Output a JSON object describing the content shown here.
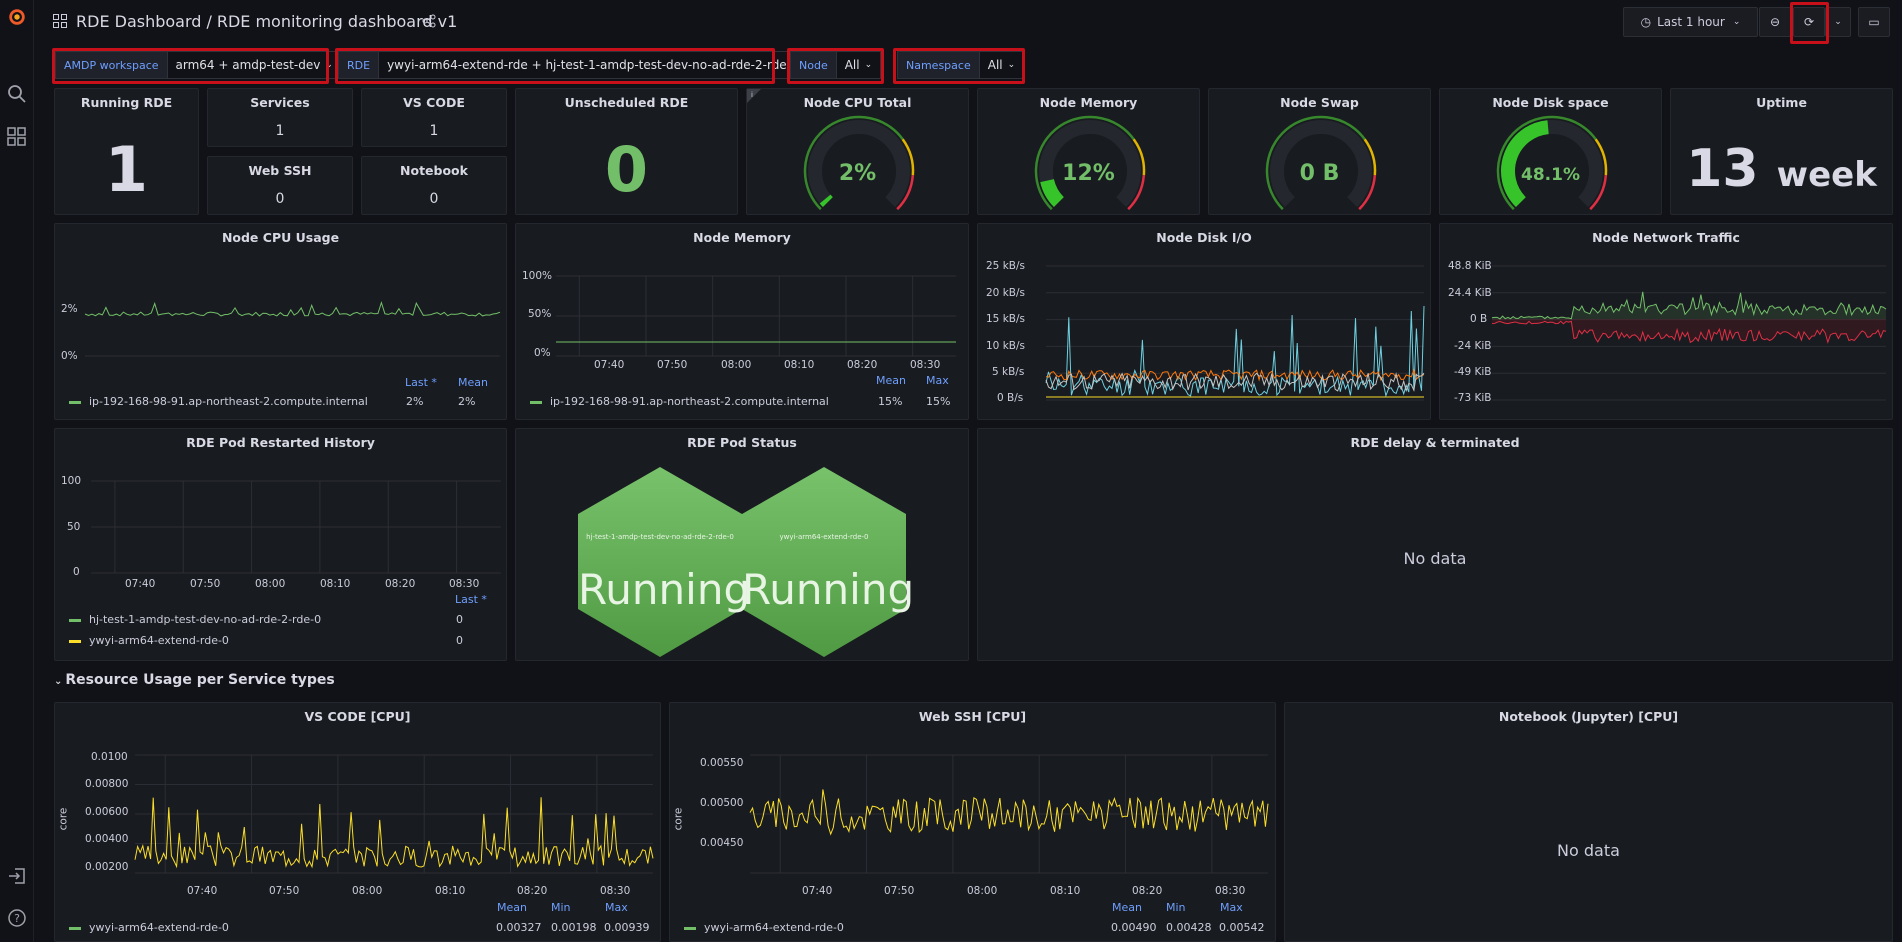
{
  "sidebar": {
    "icons": [
      "grafana-logo-icon",
      "search-icon",
      "apps-icon",
      "signin-icon",
      "help-icon"
    ]
  },
  "header": {
    "app": "RDE Dashboard",
    "sep": "/",
    "dashboard": "RDE monitoring dashboard v1",
    "time_range": "Last 1 hour"
  },
  "variables": [
    {
      "label": "AMDP workspace",
      "value": "arm64 + amdp-test-dev"
    },
    {
      "label": "RDE",
      "value": "ywyi-arm64-extend-rde + hj-test-1-amdp-test-dev-no-ad-rde-2-rde"
    },
    {
      "label": "Node",
      "value": "All"
    },
    {
      "label": "Namespace",
      "value": "All"
    }
  ],
  "stats": {
    "running_rde": {
      "title": "Running RDE",
      "value": "1"
    },
    "services": {
      "title": "Services",
      "value": "1"
    },
    "vscode": {
      "title": "VS CODE",
      "value": "1"
    },
    "webssh": {
      "title": "Web SSH",
      "value": "0"
    },
    "notebook": {
      "title": "Notebook",
      "value": "0"
    },
    "unscheduled": {
      "title": "Unscheduled RDE",
      "value": "0"
    },
    "cpu_total": {
      "title": "Node CPU Total",
      "value": "2%",
      "pct": 0.02
    },
    "memory": {
      "title": "Node Memory",
      "value": "12%",
      "pct": 0.12
    },
    "swap": {
      "title": "Node Swap",
      "value": "0 B",
      "pct": 0
    },
    "disk": {
      "title": "Node Disk space",
      "value": "48.1%",
      "pct": 0.481
    },
    "uptime": {
      "title": "Uptime",
      "value": "13",
      "unit": "week"
    }
  },
  "node_cpu": {
    "title": "Node CPU Usage",
    "yticks": [
      "2%",
      "0%"
    ],
    "legend_heads": [
      "Last *",
      "Mean"
    ],
    "series": "ip-192-168-98-91.ap-northeast-2.compute.internal",
    "last": "2%",
    "mean": "2%"
  },
  "node_memory": {
    "title": "Node Memory",
    "yticks": [
      "100%",
      "50%",
      "0%"
    ],
    "xticks": [
      "07:40",
      "07:50",
      "08:00",
      "08:10",
      "08:20",
      "08:30"
    ],
    "legend_heads": [
      "Mean",
      "Max"
    ],
    "series": "ip-192-168-98-91.ap-northeast-2.compute.internal",
    "mean": "15%",
    "max": "15%"
  },
  "disk_io": {
    "title": "Node Disk I/O",
    "yticks": [
      "25 kB/s",
      "20 kB/s",
      "15 kB/s",
      "10 kB/s",
      "5 kB/s",
      "0 B/s"
    ]
  },
  "net": {
    "title": "Node Network Traffic",
    "yticks": [
      "48.8 KiB",
      "24.4 KiB",
      "0 B",
      "-24 KiB",
      "-49 KiB",
      "-73 KiB"
    ]
  },
  "restart": {
    "title": "RDE Pod Restarted History",
    "yticks": [
      "100",
      "50",
      "0"
    ],
    "xticks": [
      "07:40",
      "07:50",
      "08:00",
      "08:10",
      "08:20",
      "08:30"
    ],
    "legend_head": "Last *",
    "rows": [
      {
        "name": "hj-test-1-amdp-test-dev-no-ad-rde-2-rde-0",
        "value": "0"
      },
      {
        "name": "ywyi-arm64-extend-rde-0",
        "value": "0"
      }
    ]
  },
  "podstatus": {
    "title": "RDE Pod Status",
    "pods": [
      {
        "name": "hj-test-1-amdp-test-dev-no-ad-rde-2-rde-0",
        "status": "Running"
      },
      {
        "name": "ywyi-arm64-extend-rde-0",
        "status": "Running"
      }
    ]
  },
  "delay": {
    "title": "RDE delay & terminated",
    "nodata": "No data"
  },
  "section": {
    "title": "Resource Usage per Service types"
  },
  "vscode_cpu": {
    "title": "VS CODE [CPU]",
    "ylabel": "core",
    "yticks": [
      "0.0100",
      "0.00800",
      "0.00600",
      "0.00400",
      "0.00200"
    ],
    "xticks": [
      "07:40",
      "07:50",
      "08:00",
      "08:10",
      "08:20",
      "08:30"
    ],
    "legend_heads": [
      "Mean",
      "Min",
      "Max"
    ],
    "series": "ywyi-arm64-extend-rde-0",
    "mean": "0.00327",
    "min": "0.00198",
    "max": "0.00939"
  },
  "webssh_cpu": {
    "title": "Web SSH [CPU]",
    "ylabel": "core",
    "yticks": [
      "0.00550",
      "0.00500",
      "0.00450"
    ],
    "xticks": [
      "07:40",
      "07:50",
      "08:00",
      "08:10",
      "08:20",
      "08:30"
    ],
    "legend_heads": [
      "Mean",
      "Min",
      "Max"
    ],
    "series": "ywyi-arm64-extend-rde-0",
    "mean": "0.00490",
    "min": "0.00428",
    "max": "0.00542"
  },
  "notebook_cpu": {
    "title": "Notebook (Jupyter) [CPU]",
    "nodata": "No data"
  },
  "colors": {
    "green": "#73bf69",
    "yellow": "#fade2a",
    "blue": "#8ab8ff",
    "orange": "#ff780a",
    "cyan": "#6ed0e0",
    "red": "#f2495c",
    "hex": "#6ab04c"
  }
}
